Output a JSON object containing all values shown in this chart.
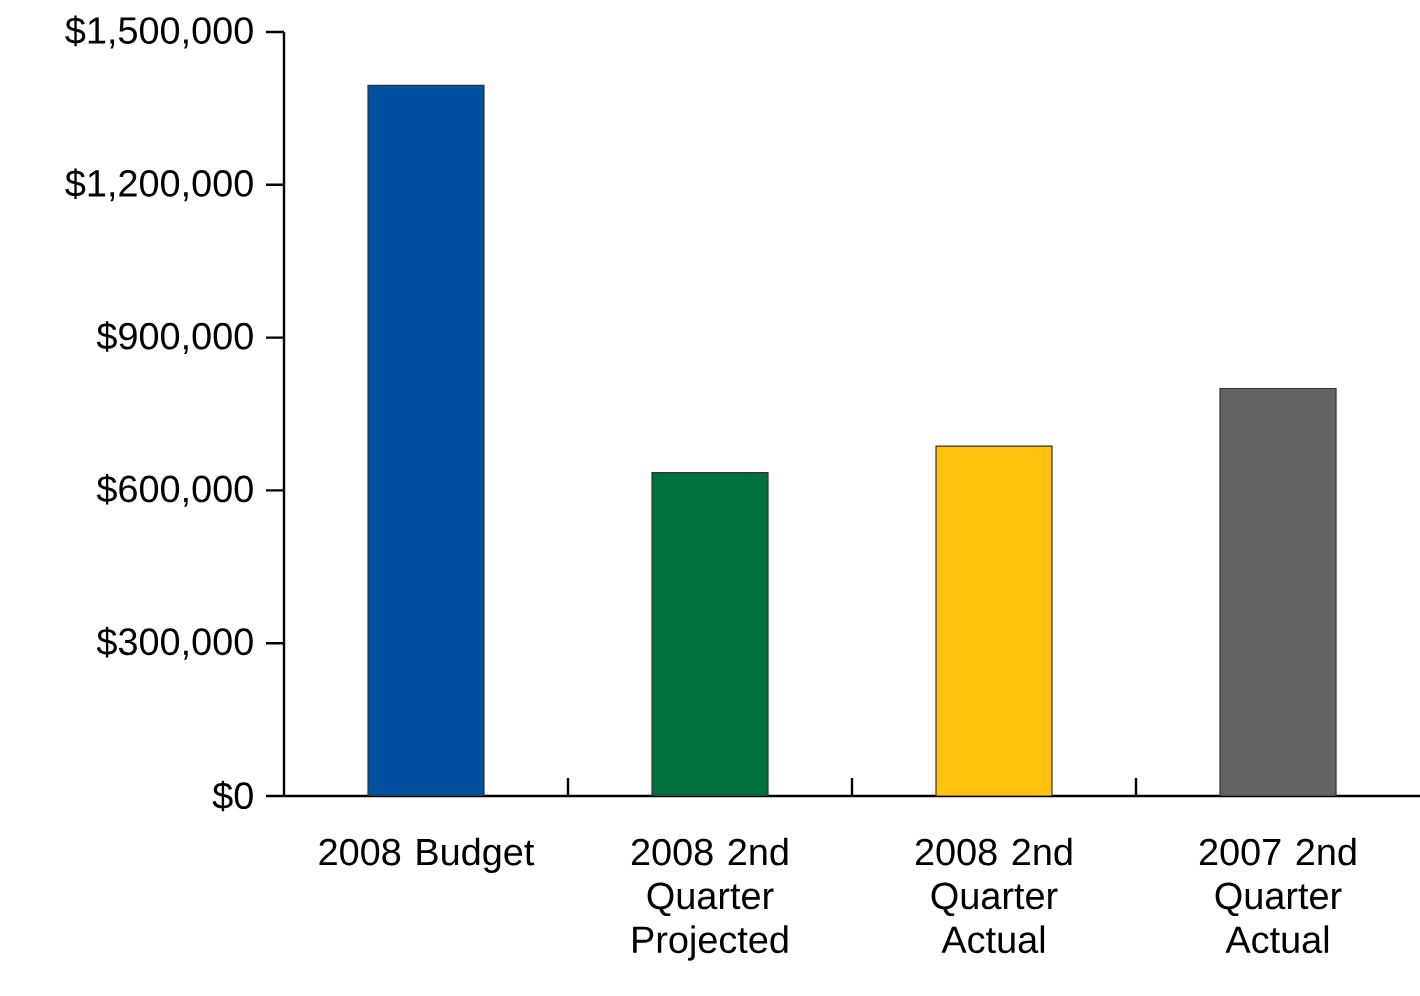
{
  "chart_data": {
    "type": "bar",
    "categories": [
      "2008 Budget",
      "2008 2nd Quarter Projected",
      "2008 2nd Quarter Actual",
      "2007 2nd Quarter Actual"
    ],
    "values": [
      1395000,
      635000,
      687000,
      800000
    ],
    "colors": [
      "#0050a0",
      "#00703c",
      "#ffc20e",
      "#636363"
    ],
    "ylim": [
      0,
      1500000
    ],
    "yticks": [
      {
        "value": 0,
        "label": "$0"
      },
      {
        "value": 300000,
        "label": "$300,000"
      },
      {
        "value": 600000,
        "label": "$600,000"
      },
      {
        "value": 900000,
        "label": "$900,000"
      },
      {
        "value": 1200000,
        "label": "$1,200,000"
      },
      {
        "value": 1500000,
        "label": "$1,500,000"
      }
    ]
  }
}
